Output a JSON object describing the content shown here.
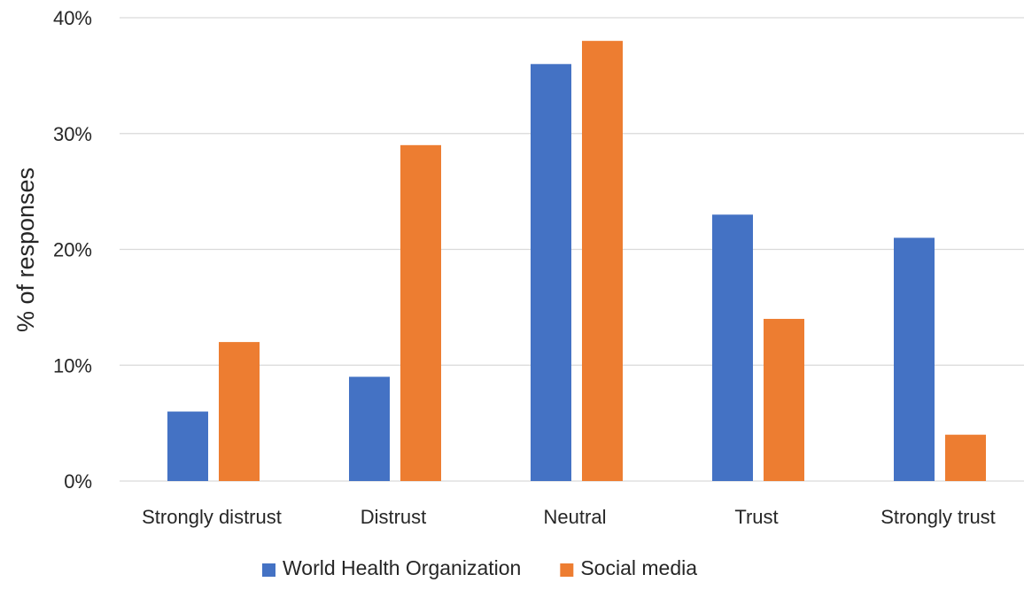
{
  "chart_data": {
    "type": "bar",
    "categories": [
      "Strongly distrust",
      "Distrust",
      "Neutral",
      "Trust",
      "Strongly trust"
    ],
    "series": [
      {
        "name": "World Health Organization",
        "values": [
          6,
          9,
          36,
          23,
          21
        ],
        "color": "#4472C4"
      },
      {
        "name": "Social media",
        "values": [
          12,
          29,
          38,
          14,
          4
        ],
        "color": "#ED7D31"
      }
    ],
    "ylabel": "% of responses",
    "ylim": [
      0,
      40
    ],
    "yticks": [
      0,
      10,
      20,
      30,
      40
    ],
    "ytick_labels": [
      "0%",
      "10%",
      "20%",
      "30%",
      "40%"
    ],
    "grid": true,
    "legend_position": "bottom"
  }
}
